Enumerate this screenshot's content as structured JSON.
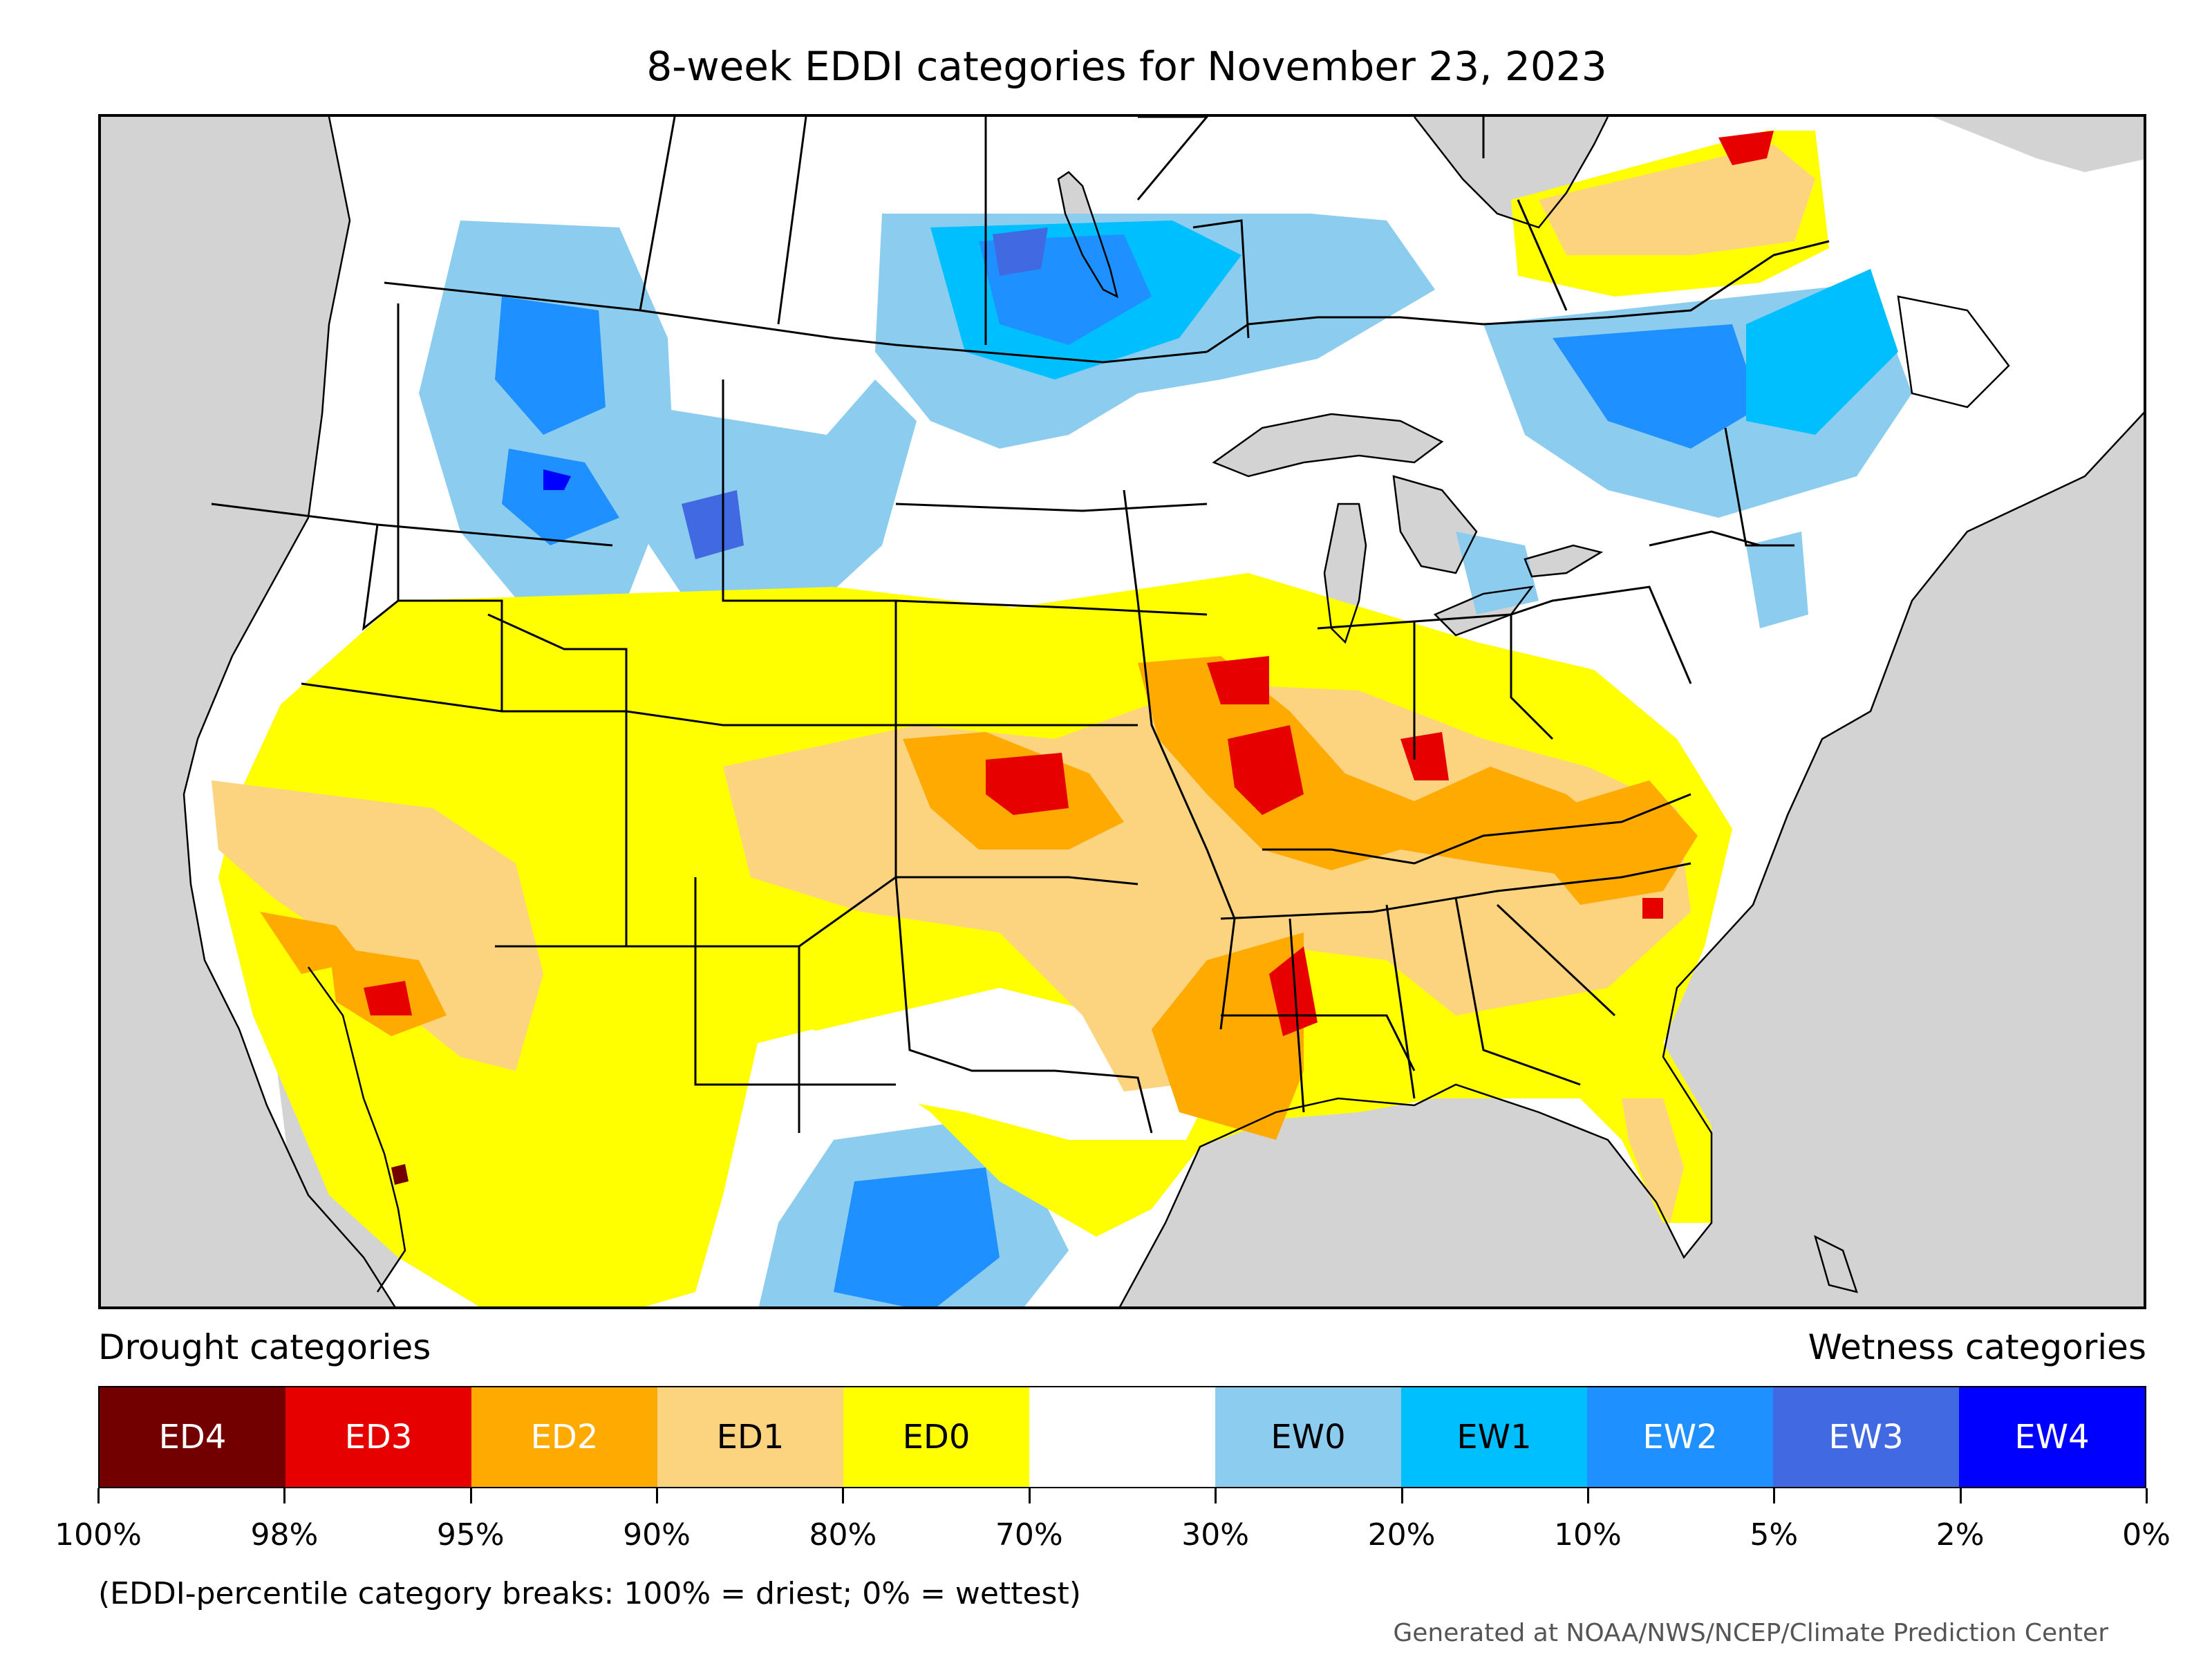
{
  "title": "8-week EDDI categories for November 23, 2023",
  "legend": {
    "drought_heading": "Drought categories",
    "wetness_heading": "Wetness categories",
    "categories": [
      {
        "label": "ED4",
        "color": "#730000",
        "text_color": "#ffffff"
      },
      {
        "label": "ED3",
        "color": "#e60000",
        "text_color": "#ffffff"
      },
      {
        "label": "ED2",
        "color": "#ffaa00",
        "text_color": "#ffffff"
      },
      {
        "label": "ED1",
        "color": "#fcd37f",
        "text_color": "#000000"
      },
      {
        "label": "ED0",
        "color": "#ffff00",
        "text_color": "#000000"
      },
      {
        "label": "",
        "color": "#ffffff",
        "text_color": "#000000"
      },
      {
        "label": "EW0",
        "color": "#8ccdef",
        "text_color": "#000000"
      },
      {
        "label": "EW1",
        "color": "#00bfff",
        "text_color": "#000000"
      },
      {
        "label": "EW2",
        "color": "#1e90ff",
        "text_color": "#ffffff"
      },
      {
        "label": "EW3",
        "color": "#4169e1",
        "text_color": "#ffffff"
      },
      {
        "label": "EW4",
        "color": "#0000ff",
        "text_color": "#ffffff"
      }
    ],
    "ticks": [
      "100%",
      "98%",
      "95%",
      "90%",
      "80%",
      "70%",
      "30%",
      "20%",
      "10%",
      "5%",
      "2%",
      "0%"
    ]
  },
  "note": "(EDDI-percentile category breaks: 100% = driest; 0% = wettest)",
  "credit": "Generated at NOAA/NWS/NCEP/Climate Prediction Center",
  "map": {
    "ocean_color": "#d3d3d3",
    "land_color": "#ffffff",
    "border_color": "#000000"
  }
}
